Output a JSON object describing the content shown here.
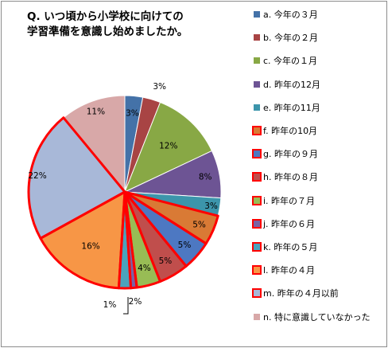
{
  "title": {
    "line1": "Q. いつ頃から小学校に向けての",
    "line2": "学習準備を意識し始めましたか。"
  },
  "chart_data": {
    "type": "pie",
    "categories": [
      "a. 今年の３月",
      "b. 今年の２月",
      "c. 今年の１月",
      "d. 昨年の12月",
      "e. 昨年の11月",
      "f. 昨年の10月",
      "g. 昨年の９月",
      "h. 昨年の８月",
      "i. 昨年の７月",
      "j. 昨年の６月",
      "k. 昨年の５月",
      "l. 昨年の４月",
      "m. 昨年の４月以前",
      "n. 特に意識していなかった"
    ],
    "values": [
      3,
      3,
      12,
      8,
      3,
      5,
      5,
      5,
      4,
      1,
      2,
      16,
      22,
      11
    ],
    "data_labels": [
      "3%",
      "3%",
      "12%",
      "8%",
      "3%",
      "5%",
      "5%",
      "5%",
      "4%",
      "1%",
      "2%",
      "16%",
      "22%",
      "11%"
    ],
    "colors": [
      "#4472a8",
      "#a84444",
      "#88a845",
      "#6d5494",
      "#3c95ab",
      "#d97a35",
      "#4d78c2",
      "#c04e4c",
      "#98bc55",
      "#7a62a4",
      "#4aa3bd",
      "#f79646",
      "#a8b8d8",
      "#d8a8a8"
    ],
    "highlighted": [
      false,
      false,
      false,
      false,
      false,
      true,
      true,
      true,
      true,
      true,
      true,
      true,
      true,
      false
    ],
    "highlight_color": "#ff0000",
    "legend_position": "right"
  }
}
